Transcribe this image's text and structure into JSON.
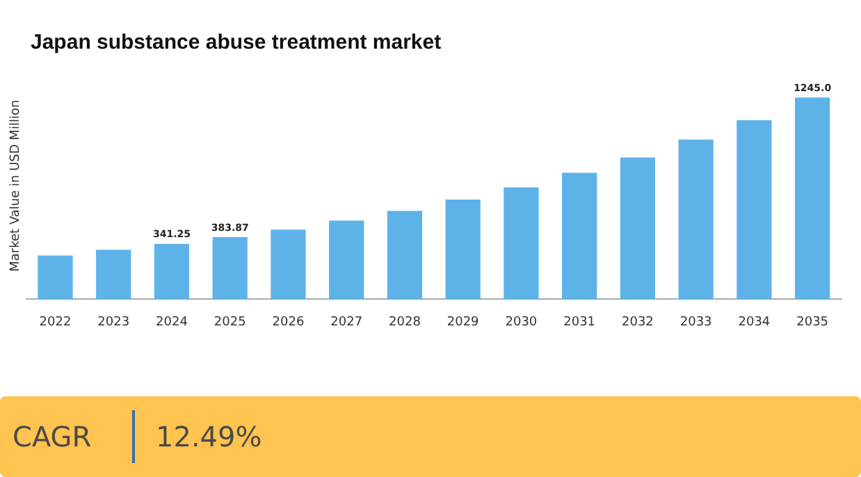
{
  "chart_data": {
    "type": "bar",
    "title": "Japan substance abuse treatment market",
    "ylabel": "Market Value in USD Million",
    "categories": [
      "2022",
      "2023",
      "2024",
      "2025",
      "2026",
      "2027",
      "2028",
      "2029",
      "2030",
      "2031",
      "2032",
      "2033",
      "2034",
      "2035"
    ],
    "values": [
      270,
      305,
      341.25,
      383.87,
      430,
      485,
      545,
      615,
      690,
      780,
      875,
      985,
      1105,
      1245.0
    ],
    "value_labels": [
      null,
      null,
      "341.25",
      "383.87",
      null,
      null,
      null,
      null,
      null,
      null,
      null,
      null,
      null,
      "1245.0"
    ],
    "color": "#5db3e8",
    "grid": false,
    "legend": false,
    "annotations": [
      "CAGR",
      "12.49%"
    ]
  }
}
